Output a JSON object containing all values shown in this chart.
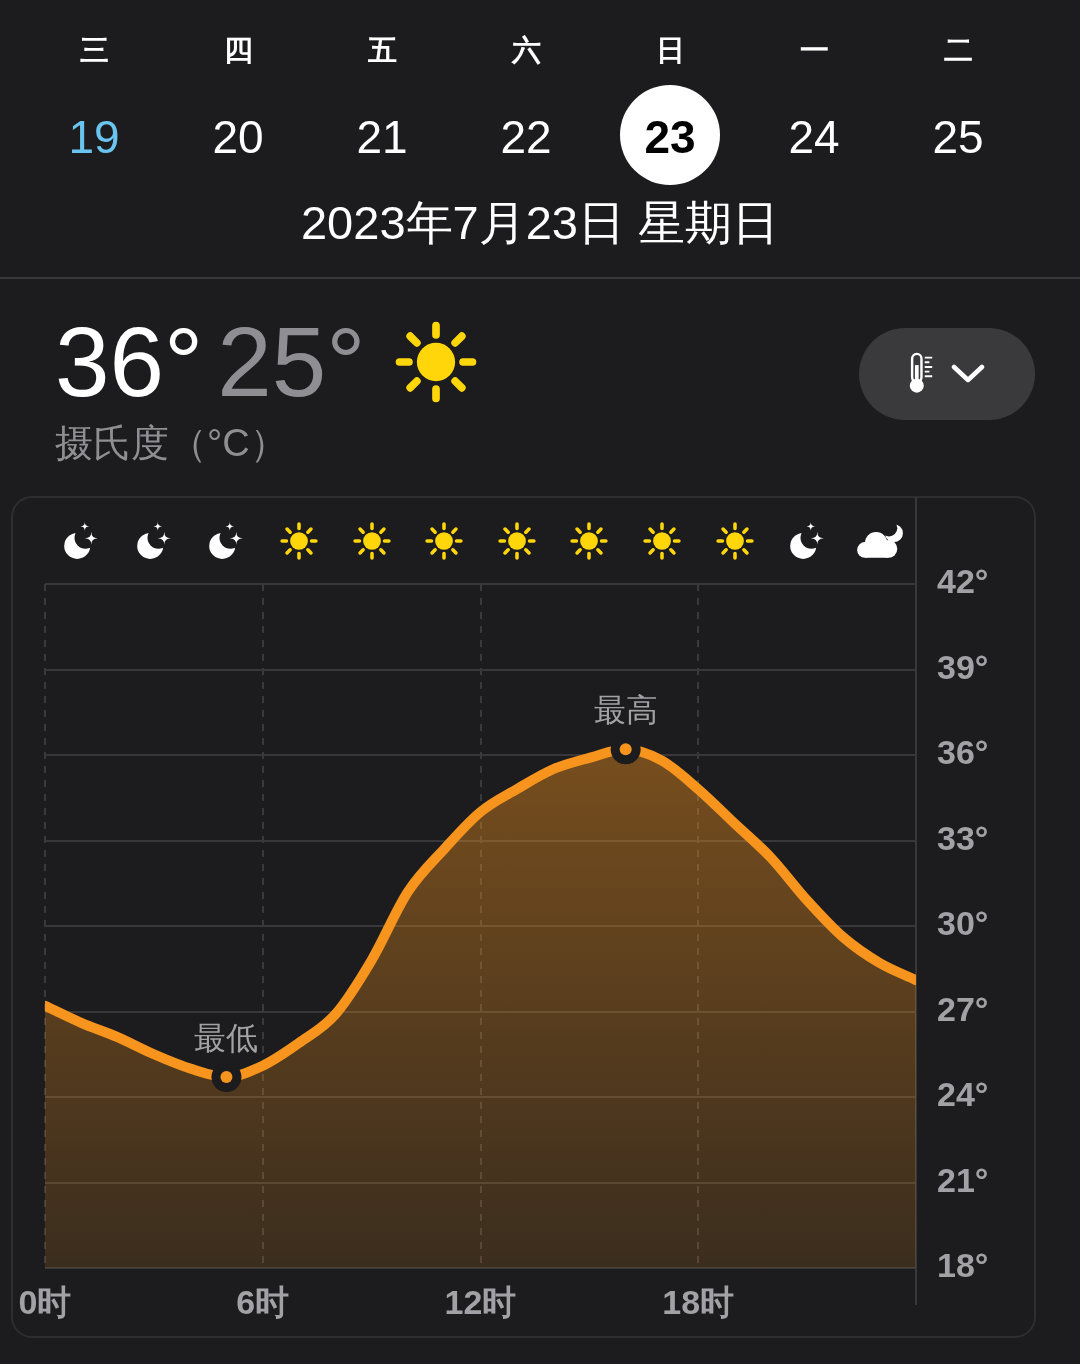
{
  "chart_data": {
    "type": "area",
    "title": "2023年7月23日 星期日",
    "x": [
      0,
      1,
      2,
      3,
      4,
      5,
      6,
      7,
      8,
      9,
      10,
      11,
      12,
      13,
      14,
      15,
      16,
      17,
      18,
      19,
      20,
      21,
      22,
      23,
      24
    ],
    "values": [
      27.2,
      26.6,
      26.1,
      25.5,
      25.0,
      24.7,
      25.1,
      25.9,
      26.9,
      28.8,
      31.2,
      32.7,
      34.0,
      34.8,
      35.5,
      35.9,
      36.2,
      35.8,
      34.8,
      33.6,
      32.4,
      30.9,
      29.6,
      28.7,
      28.1
    ],
    "color": "#f7941d",
    "xlim": [
      0,
      24
    ],
    "xticks": [
      {
        "value": 0,
        "label": "0时"
      },
      {
        "value": 6,
        "label": "6时"
      },
      {
        "value": 12,
        "label": "12时"
      },
      {
        "value": 18,
        "label": "18时"
      }
    ],
    "ylim": [
      18,
      42
    ],
    "yticks": [
      {
        "value": 18,
        "label": "18°"
      },
      {
        "value": 21,
        "label": "21°"
      },
      {
        "value": 24,
        "label": "24°"
      },
      {
        "value": 27,
        "label": "27°"
      },
      {
        "value": 30,
        "label": "30°"
      },
      {
        "value": 33,
        "label": "33°"
      },
      {
        "value": 36,
        "label": "36°"
      },
      {
        "value": 39,
        "label": "39°"
      },
      {
        "value": 42,
        "label": "42°"
      }
    ],
    "grid": true,
    "annotations": [
      "三",
      "四",
      "五",
      "六",
      "日",
      "一",
      "二",
      "19",
      "20",
      "21",
      "22",
      "23",
      "24",
      "25",
      "36°",
      "25°",
      "摄氏度（°C）",
      {
        "text": "最低",
        "x": 5,
        "y": 24.7
      },
      {
        "text": "最高",
        "x": 16,
        "y": 36.2
      }
    ]
  }
}
